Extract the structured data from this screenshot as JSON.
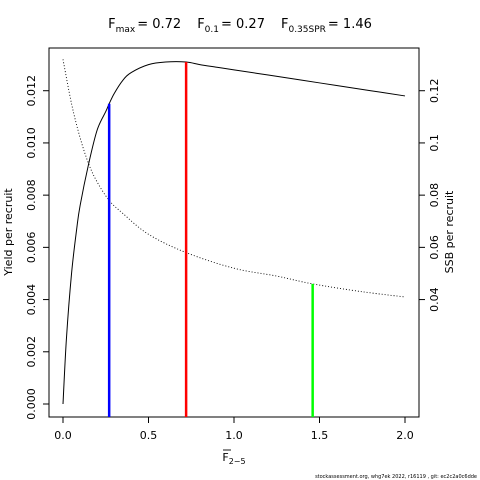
{
  "chart_data": {
    "type": "line",
    "title_parts": [
      {
        "base": "F",
        "sub": "max",
        "value": "= 0.72"
      },
      {
        "base": "F",
        "sub": "0.1",
        "value": "= 0.27"
      },
      {
        "base": "F",
        "sub": "0.35SPR",
        "value": "= 1.46"
      }
    ],
    "xlabel": {
      "base": "F",
      "sub": "2−5"
    },
    "ylabel_left": "Yield per recruit",
    "ylabel_right": "SSB per recruit",
    "xlim": [
      0,
      2.0
    ],
    "ylim_left": [
      0,
      0.0131
    ],
    "ylim_right": [
      0.0,
      0.131
    ],
    "x_ticks": [
      "0.0",
      "0.5",
      "1.0",
      "1.5",
      "2.0"
    ],
    "x_tick_values": [
      0,
      0.5,
      1.0,
      1.5,
      2.0
    ],
    "y_left_ticks": [
      "0.000",
      "0.002",
      "0.004",
      "0.006",
      "0.008",
      "0.010",
      "0.012"
    ],
    "y_left_tick_values": [
      0,
      0.002,
      0.004,
      0.006,
      0.008,
      0.01,
      0.012
    ],
    "y_right_ticks": [
      "0.04",
      "0.06",
      "0.08",
      "0.1",
      "0.12"
    ],
    "y_right_tick_values": [
      0.04,
      0.06,
      0.08,
      0.1,
      0.12
    ],
    "series": [
      {
        "axis": "left",
        "style": "solid",
        "x": [
          0,
          0.02,
          0.05,
          0.08,
          0.1,
          0.15,
          0.2,
          0.25,
          0.27,
          0.3,
          0.35,
          0.4,
          0.5,
          0.6,
          0.72,
          0.8,
          0.9,
          1.0,
          1.2,
          1.4,
          1.6,
          1.8,
          2.0
        ],
        "y": [
          0,
          0.0025,
          0.005,
          0.0067,
          0.0076,
          0.0092,
          0.0105,
          0.0112,
          0.0115,
          0.0119,
          0.0124,
          0.0127,
          0.013,
          0.0131,
          0.0131,
          0.013,
          0.0129,
          0.0128,
          0.0126,
          0.0124,
          0.0122,
          0.012,
          0.0118
        ]
      },
      {
        "axis": "right",
        "style": "dotted",
        "x": [
          0,
          0.05,
          0.1,
          0.15,
          0.2,
          0.27,
          0.35,
          0.5,
          0.72,
          1.0,
          1.25,
          1.46,
          1.75,
          2.0
        ],
        "y": [
          0.132,
          0.115,
          0.102,
          0.092,
          0.085,
          0.078,
          0.073,
          0.065,
          0.058,
          0.052,
          0.049,
          0.046,
          0.043,
          0.041
        ]
      }
    ],
    "reference_lines": [
      {
        "x": 0.27,
        "axis": "left",
        "y": 0.0115,
        "color": "#0000ff"
      },
      {
        "x": 0.72,
        "axis": "left",
        "y": 0.0131,
        "color": "#ff0000"
      },
      {
        "x": 1.46,
        "axis": "right",
        "y": 0.046,
        "color": "#00ff00"
      }
    ],
    "grid": false,
    "footer": "stockassessment.org, whg7ek 2022, r16119 , git: ec2c2a0c6dde"
  }
}
